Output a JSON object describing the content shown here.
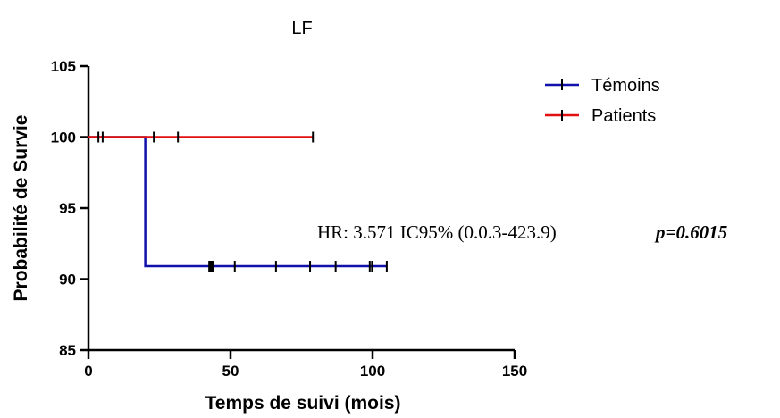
{
  "chart_data": {
    "type": "line",
    "title": "LF",
    "xlabel": "Temps de suivi (mois)",
    "ylabel": "Probabilité de Survie",
    "xlim": [
      0,
      150
    ],
    "ylim": [
      85,
      105
    ],
    "x_ticks": [
      0,
      50,
      100,
      150
    ],
    "x_tick_labels": [
      "0",
      "50",
      "100",
      "150"
    ],
    "y_ticks": [
      85,
      90,
      95,
      100,
      105
    ],
    "y_tick_labels": [
      "85",
      "90",
      "95",
      "100",
      "105"
    ],
    "grid": false,
    "legend_position": "top-right",
    "series": [
      {
        "name": "Témoins",
        "color": "#1010aa",
        "steps": [
          [
            0,
            100
          ],
          [
            20,
            100
          ],
          [
            20,
            90.91
          ],
          [
            105,
            90.91
          ]
        ],
        "censored": [
          [
            42.5,
            90.91
          ],
          [
            43,
            90.91
          ],
          [
            43.5,
            90.91
          ],
          [
            44,
            90.91
          ],
          [
            51.5,
            90.91
          ],
          [
            66,
            90.91
          ],
          [
            78,
            90.91
          ],
          [
            87,
            90.91
          ],
          [
            99,
            90.91
          ],
          [
            99.8,
            90.91
          ],
          [
            105,
            90.91
          ]
        ]
      },
      {
        "name": "Patients",
        "color": "#e01010",
        "steps": [
          [
            0,
            100
          ],
          [
            79,
            100
          ]
        ],
        "censored": [
          [
            3.5,
            100
          ],
          [
            5,
            100
          ],
          [
            23,
            100
          ],
          [
            31.5,
            100
          ],
          [
            79,
            100
          ]
        ]
      }
    ],
    "annotations": [
      {
        "text": "HR: 3.571 IC95% (0.0.3-423.9)",
        "style": "normal"
      },
      {
        "text": "p=0.6015",
        "style": "bold-italic"
      }
    ]
  }
}
